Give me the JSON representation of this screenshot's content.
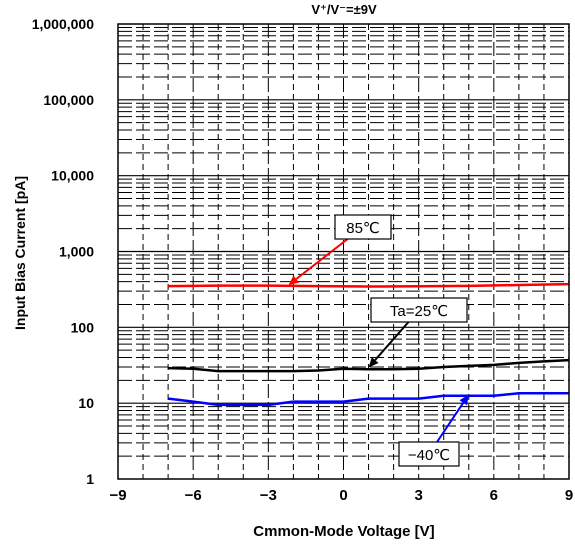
{
  "chart_data": {
    "type": "line",
    "title": "V⁺/V⁻=±9V",
    "xlabel": "Cmmon-Mode Voltage [V]",
    "ylabel": "Input Bias Current [pA]",
    "xlim": [
      -9,
      9
    ],
    "ylim": [
      1,
      1000000
    ],
    "yscale": "log",
    "grid": true,
    "x_ticks": [
      -9,
      -6,
      -3,
      0,
      3,
      6,
      9
    ],
    "x_tick_labels": [
      "−9",
      "−6",
      "−3",
      "0",
      "3",
      "6",
      "9"
    ],
    "y_ticks": [
      1,
      10,
      100,
      1000,
      10000,
      100000,
      1000000
    ],
    "y_tick_labels": [
      "1",
      "10",
      "100",
      "1,000",
      "10,000",
      "100,000",
      "1,000,000"
    ],
    "series": [
      {
        "name": "85℃",
        "color": "#ff0000",
        "x": [
          -7,
          -5,
          -3,
          -1,
          1,
          3,
          5,
          7,
          9
        ],
        "y": [
          350,
          355,
          355,
          350,
          345,
          348,
          352,
          362,
          372
        ]
      },
      {
        "name": "Ta=25℃",
        "color": "#000000",
        "x": [
          -7,
          -6,
          -5,
          -4,
          -3,
          -2,
          -1,
          0,
          1,
          2,
          3,
          4,
          5,
          6,
          7,
          8,
          9
        ],
        "y": [
          29,
          28.5,
          26.5,
          26.5,
          26.5,
          26.5,
          27,
          28.5,
          28,
          28,
          28.5,
          30,
          31,
          32,
          34,
          35.5,
          37
        ]
      },
      {
        "name": "−40℃",
        "color": "#0000ff",
        "x": [
          -7,
          -6,
          -5,
          -3,
          -2,
          0,
          1,
          3,
          4,
          5,
          6,
          7,
          9
        ],
        "y": [
          11.5,
          10.5,
          9.5,
          9.5,
          10.5,
          10.5,
          11.5,
          11.5,
          12.5,
          12.5,
          12.5,
          13.5,
          13.5
        ]
      }
    ]
  }
}
